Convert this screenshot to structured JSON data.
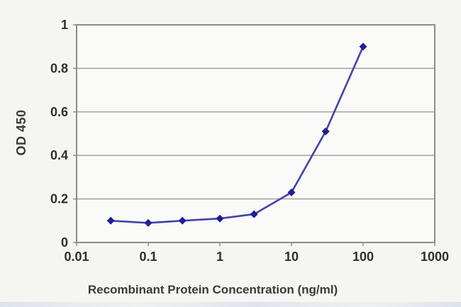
{
  "chart_data": {
    "type": "line",
    "title": "",
    "xlabel": "Recombinant Protein Concentration (ng/ml)",
    "ylabel": "OD 450",
    "x_scale": "log",
    "xlim": [
      0.01,
      1000
    ],
    "ylim": [
      0,
      1
    ],
    "x_ticks": [
      0.01,
      0.1,
      1,
      10,
      100,
      1000
    ],
    "x_tick_labels": [
      "0.01",
      "0.1",
      "1",
      "10",
      "100",
      "1000"
    ],
    "y_ticks": [
      0,
      0.2,
      0.4,
      0.6,
      0.8,
      1
    ],
    "y_tick_labels": [
      "0",
      "0.2",
      "0.4",
      "0.6",
      "0.8",
      "1"
    ],
    "grid": "horizontal",
    "legend": "none",
    "series": [
      {
        "name": "OD 450",
        "x": [
          0.03,
          0.1,
          0.3,
          1,
          3,
          10,
          30,
          100
        ],
        "y": [
          0.1,
          0.09,
          0.1,
          0.11,
          0.13,
          0.23,
          0.51,
          0.9
        ],
        "marker": "diamond"
      }
    ],
    "colors": {
      "line": "#4343a6",
      "marker": "#1f1f96",
      "grid": "#9a9a9a",
      "border": "#8c8c8c",
      "plot_background": "#fafaf8",
      "tick_text": "#2e2e2e"
    }
  }
}
